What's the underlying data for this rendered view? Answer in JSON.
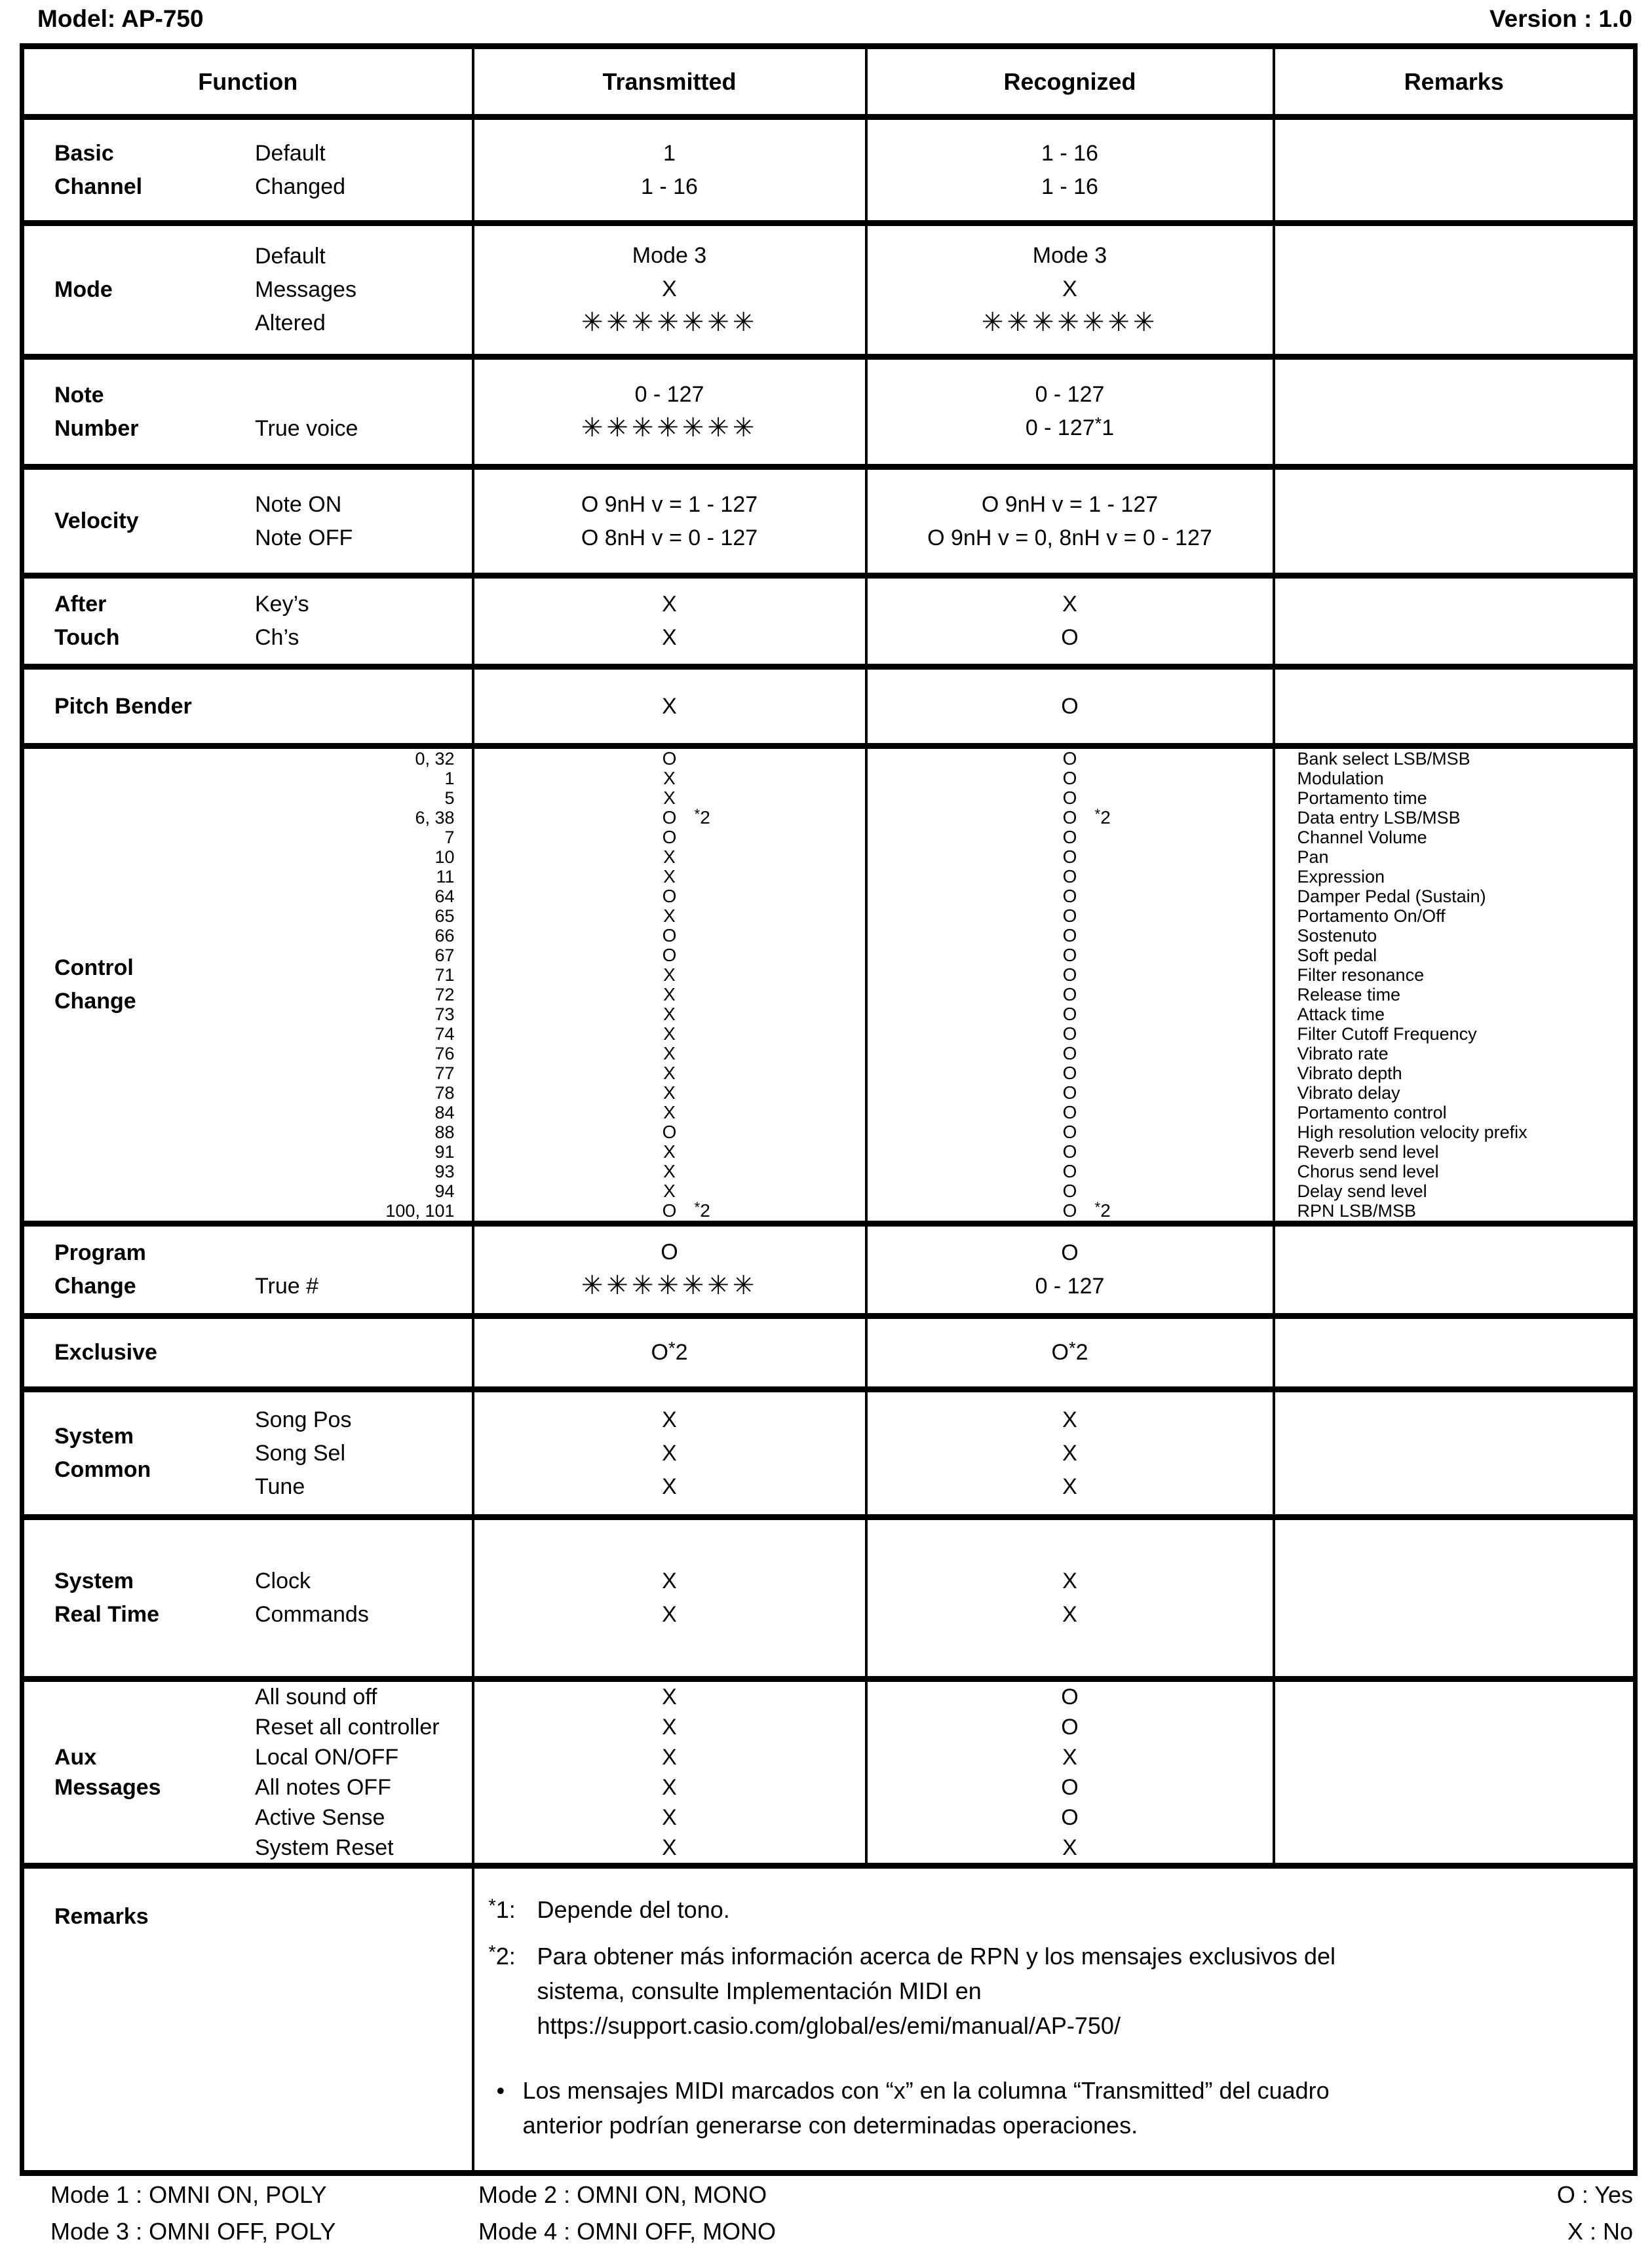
{
  "header": {
    "model": "Model: AP-750",
    "version": "Version : 1.0"
  },
  "table": {
    "headers": [
      "Function",
      "Transmitted",
      "Recognized",
      "Remarks"
    ],
    "basic_channel": {
      "label": [
        "Basic",
        "Channel"
      ],
      "subs": [
        "Default",
        "Changed"
      ],
      "transmitted": [
        "1",
        "1 - 16"
      ],
      "recognized": [
        "1 - 16",
        "1 - 16"
      ]
    },
    "mode": {
      "label": [
        "Mode"
      ],
      "subs": [
        "Default",
        "Messages",
        "Altered"
      ],
      "transmitted": [
        "Mode 3",
        "X",
        "✳✳✳✳✳✳✳"
      ],
      "recognized": [
        "Mode 3",
        "X",
        "✳✳✳✳✳✳✳"
      ]
    },
    "note_number": {
      "label": [
        "Note",
        "Number"
      ],
      "subs": [
        "",
        "True voice"
      ],
      "transmitted": [
        "0 - 127",
        "✳✳✳✳✳✳✳"
      ],
      "recognized": [
        "0 - 127",
        {
          "v": "0 - 127",
          "star": "1"
        }
      ]
    },
    "velocity": {
      "label": [
        "Velocity"
      ],
      "subs": [
        "Note ON",
        "Note OFF"
      ],
      "transmitted": [
        "O 9nH v = 1 - 127",
        "O 8nH v = 0 - 127"
      ],
      "recognized": [
        "O 9nH v = 1 - 127",
        "O 9nH v = 0, 8nH v = 0 - 127"
      ]
    },
    "after_touch": {
      "label": [
        "After",
        "Touch"
      ],
      "subs": [
        "Key’s",
        "Ch’s"
      ],
      "transmitted": [
        "X",
        "X"
      ],
      "recognized": [
        "X",
        "O"
      ]
    },
    "pitch_bender": {
      "label": [
        "Pitch Bender"
      ],
      "subs": [],
      "transmitted": [
        "X"
      ],
      "recognized": [
        "O"
      ]
    },
    "control_change": {
      "label": [
        "Control",
        "Change"
      ],
      "numbers": [
        "0, 32",
        "1",
        "5",
        "6, 38",
        "7",
        "10",
        "11",
        "64",
        "65",
        "66",
        "67",
        "71",
        "72",
        "73",
        "74",
        "76",
        "77",
        "78",
        "84",
        "88",
        "91",
        "93",
        "94",
        "100, 101"
      ],
      "transmitted": [
        "O",
        "X",
        "X",
        {
          "v": "O",
          "star": "2",
          "offset": true
        },
        "O",
        "X",
        "X",
        "O",
        "X",
        "O",
        "O",
        "X",
        "X",
        "X",
        "X",
        "X",
        "X",
        "X",
        "X",
        "O",
        "X",
        "X",
        "X",
        {
          "v": "O",
          "star": "2",
          "offset": true
        }
      ],
      "recognized": [
        "O",
        "O",
        "O",
        {
          "v": "O",
          "star": "2",
          "offset": true
        },
        "O",
        "O",
        "O",
        "O",
        "O",
        "O",
        "O",
        "O",
        "O",
        "O",
        "O",
        "O",
        "O",
        "O",
        "O",
        "O",
        "O",
        "O",
        "O",
        {
          "v": "O",
          "star": "2",
          "offset": true
        }
      ],
      "names": [
        "Bank select LSB/MSB",
        "Modulation",
        "Portamento time",
        "Data entry LSB/MSB",
        "Channel Volume",
        "Pan",
        "Expression",
        "Damper Pedal (Sustain)",
        "Portamento On/Off",
        "Sostenuto",
        "Soft pedal",
        "Filter resonance",
        "Release time",
        "Attack time",
        "Filter Cutoff Frequency",
        "Vibrato rate",
        "Vibrato depth",
        "Vibrato delay",
        "Portamento control",
        "High resolution velocity prefix",
        "Reverb send level",
        "Chorus send level",
        "Delay send level",
        "RPN LSB/MSB"
      ]
    },
    "program_change": {
      "label": [
        "Program",
        "Change"
      ],
      "subs": [
        "",
        "True #"
      ],
      "transmitted": [
        "O",
        "✳✳✳✳✳✳✳"
      ],
      "recognized": [
        "O",
        "0 - 127"
      ]
    },
    "exclusive": {
      "label": [
        "Exclusive"
      ],
      "subs": [],
      "transmitted": [
        {
          "v": "O",
          "star": "2"
        }
      ],
      "recognized": [
        {
          "v": "O",
          "star": "2"
        }
      ]
    },
    "system_common": {
      "label": [
        "System",
        "Common"
      ],
      "subs": [
        "Song Pos",
        "Song Sel",
        "Tune"
      ],
      "transmitted": [
        "X",
        "X",
        "X"
      ],
      "recognized": [
        "X",
        "X",
        "X"
      ]
    },
    "system_real_time": {
      "label": [
        "System",
        "Real Time"
      ],
      "subs": [
        "Clock",
        "Commands"
      ],
      "transmitted": [
        "X",
        "X"
      ],
      "recognized": [
        "X",
        "X"
      ]
    },
    "aux_messages": {
      "label": [
        "Aux",
        "Messages"
      ],
      "subs": [
        "All sound off",
        "Reset all controller",
        "Local ON/OFF",
        "All notes OFF",
        "Active Sense",
        "System Reset"
      ],
      "transmitted": [
        "X",
        "X",
        "X",
        "X",
        "X",
        "X"
      ],
      "recognized": [
        "O",
        "O",
        "X",
        "O",
        "O",
        "X"
      ]
    },
    "remarks": {
      "label": [
        "Remarks"
      ],
      "notes": [
        {
          "marker": "*1:",
          "lines": [
            "Depende del tono."
          ]
        },
        {
          "marker": "*2:",
          "lines": [
            "Para obtener más información acerca de RPN y los mensajes exclusivos del",
            "sistema, consulte Implementación MIDI en",
            "https://support.casio.com/global/es/emi/manual/AP-750/"
          ]
        },
        {
          "marker": "•",
          "lines": [
            "Los mensajes MIDI marcados con “x” en la columna “Transmitted” del cuadro",
            "anterior podrían generarse con determinadas operaciones."
          ]
        }
      ]
    }
  },
  "footer": {
    "modes": [
      "Mode 1 : OMNI ON, POLY",
      "Mode 2 : OMNI ON, MONO",
      "Mode 3 : OMNI OFF, POLY",
      "Mode 4 : OMNI OFF, MONO"
    ],
    "legend": [
      "O : Yes",
      "X : No"
    ]
  }
}
